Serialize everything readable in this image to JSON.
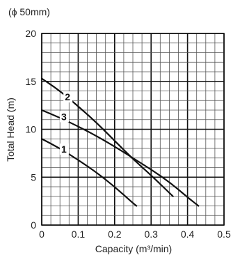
{
  "chart_data": {
    "type": "line",
    "title": "(ϕ 50mm)",
    "xlabel": "Capacity (m³/min)",
    "ylabel": "Total Head (m)",
    "xlim": [
      0,
      0.5
    ],
    "ylim": [
      0,
      20
    ],
    "x_ticks": [
      "0",
      "0.1",
      "0.2",
      "0.3",
      "0.4",
      "0.5"
    ],
    "y_ticks": [
      "0",
      "5",
      "10",
      "15",
      "20"
    ],
    "grid": true,
    "grid_minor_x_step": 0.025,
    "grid_minor_y_step": 1,
    "series": [
      {
        "name": "1",
        "x": [
          0,
          0.05,
          0.1,
          0.15,
          0.2,
          0.25,
          0.26
        ],
        "y": [
          9.0,
          8.0,
          6.8,
          5.5,
          4.0,
          2.3,
          2.0
        ]
      },
      {
        "name": "2",
        "x": [
          0,
          0.05,
          0.1,
          0.15,
          0.2,
          0.25,
          0.3,
          0.36
        ],
        "y": [
          15.3,
          14.0,
          12.4,
          10.7,
          8.8,
          6.9,
          5.2,
          3.0
        ]
      },
      {
        "name": "3",
        "x": [
          0,
          0.05,
          0.1,
          0.15,
          0.2,
          0.25,
          0.3,
          0.35,
          0.4,
          0.43
        ],
        "y": [
          12.0,
          11.2,
          10.3,
          9.3,
          8.2,
          7.0,
          5.8,
          4.5,
          2.9,
          2.0
        ]
      }
    ]
  }
}
